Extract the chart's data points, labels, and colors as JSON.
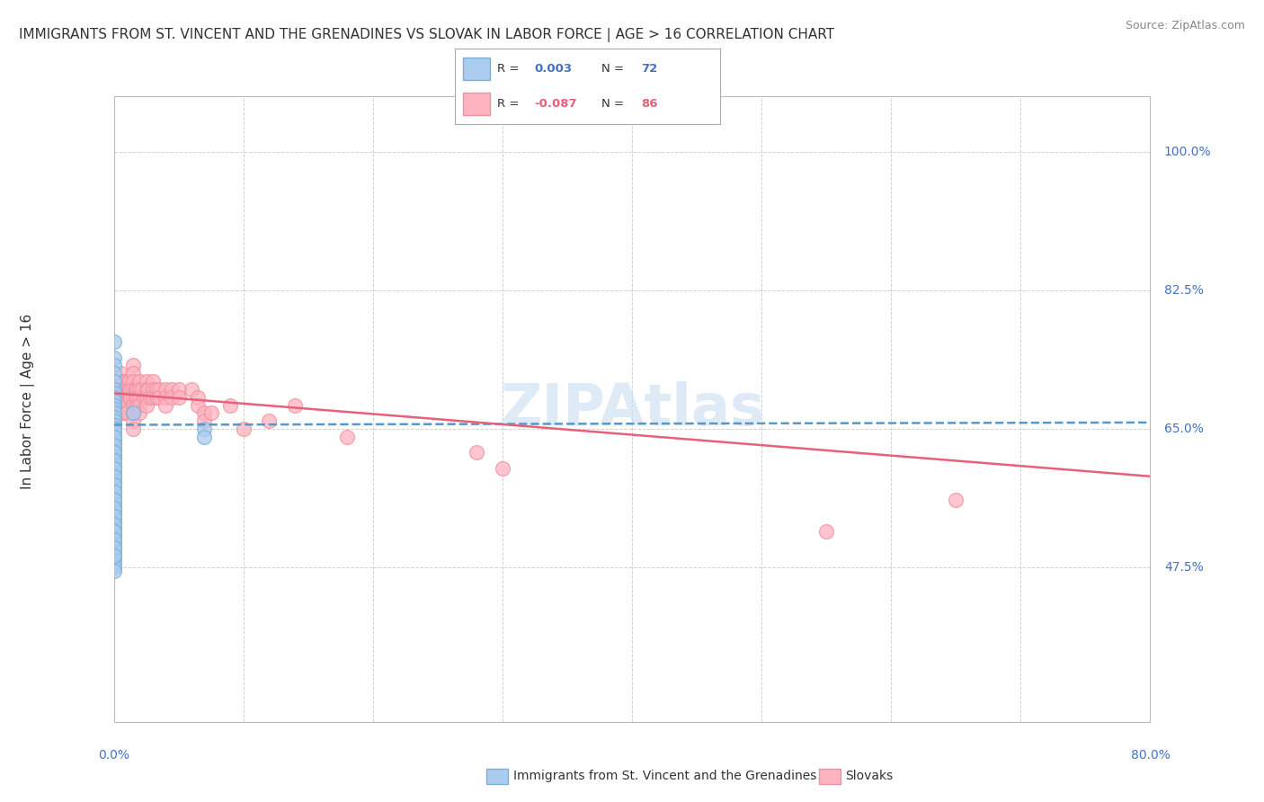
{
  "title": "IMMIGRANTS FROM ST. VINCENT AND THE GRENADINES VS SLOVAK IN LABOR FORCE | AGE > 16 CORRELATION CHART",
  "source": "Source: ZipAtlas.com",
  "ylabel": "In Labor Force | Age > 16",
  "y_ticks": [
    0.475,
    0.65,
    0.825,
    1.0
  ],
  "y_tick_labels": [
    "47.5%",
    "65.0%",
    "82.5%",
    "100.0%"
  ],
  "x_min": 0.0,
  "x_max": 0.8,
  "y_min": 0.28,
  "y_max": 1.07,
  "blue_scatter_x": [
    0.0,
    0.0,
    0.0,
    0.0,
    0.0,
    0.0,
    0.0,
    0.0,
    0.0,
    0.0,
    0.0,
    0.0,
    0.0,
    0.0,
    0.0,
    0.0,
    0.0,
    0.0,
    0.0,
    0.0,
    0.0,
    0.0,
    0.0,
    0.0,
    0.0,
    0.0,
    0.0,
    0.0,
    0.0,
    0.0,
    0.0,
    0.0,
    0.0,
    0.0,
    0.0,
    0.0,
    0.0,
    0.0,
    0.0,
    0.0,
    0.0,
    0.0,
    0.0,
    0.0,
    0.0,
    0.0,
    0.0,
    0.0,
    0.0,
    0.0,
    0.0,
    0.0,
    0.0,
    0.0,
    0.0,
    0.0,
    0.0,
    0.0,
    0.0,
    0.0,
    0.0,
    0.0,
    0.0,
    0.0,
    0.0,
    0.0,
    0.0,
    0.0,
    0.0,
    0.015,
    0.07,
    0.07
  ],
  "blue_scatter_y": [
    0.76,
    0.74,
    0.73,
    0.72,
    0.71,
    0.7,
    0.695,
    0.69,
    0.685,
    0.68,
    0.675,
    0.67,
    0.665,
    0.66,
    0.655,
    0.65,
    0.645,
    0.64,
    0.635,
    0.63,
    0.625,
    0.62,
    0.615,
    0.61,
    0.605,
    0.6,
    0.595,
    0.59,
    0.585,
    0.58,
    0.575,
    0.57,
    0.565,
    0.56,
    0.555,
    0.55,
    0.545,
    0.54,
    0.535,
    0.53,
    0.525,
    0.52,
    0.515,
    0.51,
    0.505,
    0.5,
    0.495,
    0.49,
    0.485,
    0.48,
    0.475,
    0.47,
    0.65,
    0.64,
    0.63,
    0.62,
    0.61,
    0.6,
    0.59,
    0.58,
    0.57,
    0.56,
    0.55,
    0.54,
    0.53,
    0.52,
    0.51,
    0.5,
    0.49,
    0.67,
    0.65,
    0.64
  ],
  "pink_scatter_x": [
    0.0,
    0.0,
    0.0,
    0.0,
    0.0,
    0.003,
    0.003,
    0.003,
    0.005,
    0.005,
    0.005,
    0.005,
    0.005,
    0.007,
    0.007,
    0.007,
    0.007,
    0.007,
    0.008,
    0.008,
    0.01,
    0.01,
    0.01,
    0.01,
    0.01,
    0.012,
    0.012,
    0.012,
    0.013,
    0.013,
    0.015,
    0.015,
    0.015,
    0.015,
    0.015,
    0.015,
    0.015,
    0.015,
    0.015,
    0.017,
    0.017,
    0.018,
    0.018,
    0.018,
    0.02,
    0.02,
    0.02,
    0.02,
    0.02,
    0.022,
    0.023,
    0.025,
    0.025,
    0.025,
    0.025,
    0.027,
    0.028,
    0.03,
    0.03,
    0.03,
    0.033,
    0.033,
    0.035,
    0.035,
    0.04,
    0.04,
    0.04,
    0.045,
    0.045,
    0.05,
    0.05,
    0.06,
    0.065,
    0.065,
    0.07,
    0.07,
    0.075,
    0.09,
    0.1,
    0.12,
    0.14,
    0.18,
    0.28,
    0.3,
    0.55,
    0.65
  ],
  "pink_scatter_y": [
    0.7,
    0.69,
    0.68,
    0.67,
    0.66,
    0.71,
    0.69,
    0.68,
    0.72,
    0.7,
    0.69,
    0.68,
    0.67,
    0.71,
    0.7,
    0.69,
    0.68,
    0.67,
    0.7,
    0.69,
    0.71,
    0.7,
    0.69,
    0.68,
    0.67,
    0.71,
    0.7,
    0.69,
    0.7,
    0.69,
    0.73,
    0.72,
    0.71,
    0.7,
    0.69,
    0.68,
    0.67,
    0.66,
    0.65,
    0.7,
    0.69,
    0.7,
    0.69,
    0.68,
    0.71,
    0.7,
    0.69,
    0.68,
    0.67,
    0.7,
    0.69,
    0.71,
    0.7,
    0.69,
    0.68,
    0.7,
    0.69,
    0.71,
    0.7,
    0.69,
    0.7,
    0.69,
    0.7,
    0.69,
    0.7,
    0.69,
    0.68,
    0.7,
    0.69,
    0.7,
    0.69,
    0.7,
    0.69,
    0.68,
    0.67,
    0.66,
    0.67,
    0.68,
    0.65,
    0.66,
    0.68,
    0.64,
    0.62,
    0.6,
    0.52,
    0.56
  ],
  "blue_trend_x": [
    0.0,
    0.8
  ],
  "blue_trend_y": [
    0.655,
    0.658
  ],
  "pink_trend_x": [
    0.0,
    0.8
  ],
  "pink_trend_y": [
    0.695,
    0.59
  ],
  "background_color": "#ffffff",
  "grid_color": "#cccccc",
  "blue_dot_color": "#aaccee",
  "blue_dot_edge": "#7ab0d8",
  "pink_dot_color": "#ffb3c0",
  "pink_dot_edge": "#f090a0",
  "blue_line_color": "#5599cc",
  "pink_line_color": "#e8607a",
  "watermark_color": "#c8dcf0"
}
